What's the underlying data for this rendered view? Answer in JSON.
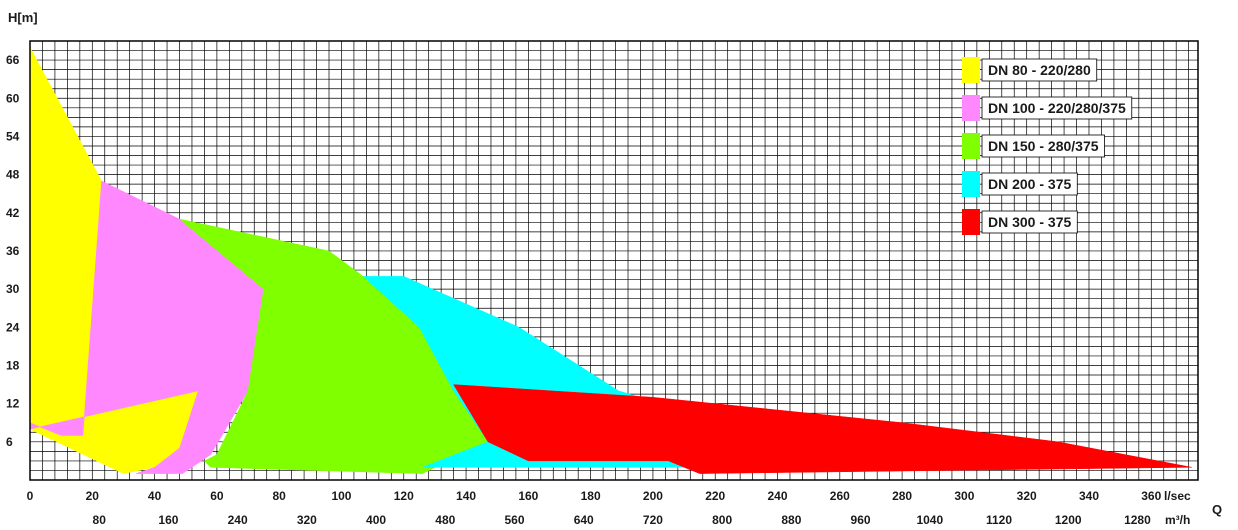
{
  "chart_data": {
    "type": "area",
    "title": "",
    "ylabel": "H[m]",
    "xlabel_lsec": "l/sec",
    "xlabel_m3h": "m³/h",
    "xlabel_q": "Q",
    "xlim": [
      0,
      375
    ],
    "ylim": [
      0,
      69
    ],
    "grid": true,
    "legend_position": "top-right",
    "y_ticks": [
      6,
      12,
      18,
      24,
      30,
      36,
      42,
      48,
      54,
      60,
      66
    ],
    "x_ticks_lsec": [
      0,
      20,
      40,
      60,
      80,
      100,
      120,
      140,
      160,
      180,
      200,
      220,
      240,
      260,
      280,
      300,
      320,
      340,
      360
    ],
    "x_ticks_m3h": [
      80,
      160,
      240,
      320,
      400,
      480,
      560,
      640,
      720,
      800,
      880,
      960,
      1040,
      1120,
      1200,
      1280
    ],
    "series": [
      {
        "name": "DN 80 - 220/280",
        "color": "#ffff00",
        "points": [
          [
            0,
            68
          ],
          [
            23,
            47
          ],
          [
            54,
            14
          ],
          [
            48,
            5
          ],
          [
            40,
            2
          ],
          [
            30,
            1
          ],
          [
            0,
            8
          ]
        ]
      },
      {
        "name": "DN 100 - 220/280/375",
        "color": "#ff88ff",
        "points": [
          [
            23,
            47
          ],
          [
            48,
            41
          ],
          [
            75,
            30
          ],
          [
            70,
            14
          ],
          [
            58,
            4
          ],
          [
            49,
            1
          ],
          [
            34,
            1
          ],
          [
            40,
            2
          ],
          [
            48,
            5
          ],
          [
            54,
            14
          ],
          [
            0,
            8
          ],
          [
            0,
            9
          ],
          [
            10,
            7
          ],
          [
            17,
            7
          ]
        ]
      },
      {
        "name": "DN 150 - 280/375",
        "color": "#80ff00",
        "points": [
          [
            48,
            41
          ],
          [
            96,
            36
          ],
          [
            107,
            32
          ],
          [
            125,
            24
          ],
          [
            136,
            14
          ],
          [
            147,
            6
          ],
          [
            126,
            1
          ],
          [
            58,
            2
          ],
          [
            56,
            3
          ],
          [
            60,
            4
          ],
          [
            70,
            14
          ],
          [
            75,
            30
          ]
        ]
      },
      {
        "name": "DN 200 - 375",
        "color": "#00ffff",
        "points": [
          [
            107,
            32
          ],
          [
            120,
            32
          ],
          [
            157,
            24
          ],
          [
            189,
            14
          ],
          [
            210,
            11
          ],
          [
            205,
            3
          ],
          [
            210,
            2
          ],
          [
            180,
            2
          ],
          [
            150,
            2
          ],
          [
            126,
            2
          ],
          [
            147,
            6
          ],
          [
            136,
            14
          ],
          [
            125,
            24
          ]
        ]
      },
      {
        "name": "DN 300 - 375",
        "color": "#ff0000",
        "points": [
          [
            136,
            15
          ],
          [
            200,
            13
          ],
          [
            280,
            9
          ],
          [
            330,
            6
          ],
          [
            373,
            2
          ],
          [
            215,
            1
          ],
          [
            210,
            2
          ],
          [
            205,
            3
          ],
          [
            160,
            3
          ],
          [
            147,
            6
          ]
        ]
      }
    ]
  }
}
